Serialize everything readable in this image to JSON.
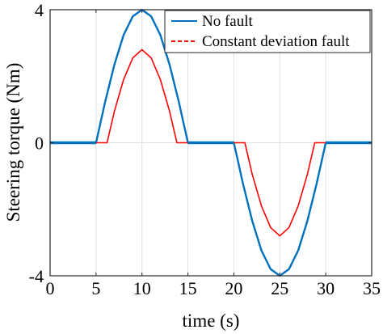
{
  "chart_data": {
    "type": "line",
    "xlabel": "time (s)",
    "ylabel": "Steering torque (Nm)",
    "xlim": [
      0,
      35
    ],
    "ylim": [
      -4,
      4
    ],
    "xticks": [
      "0",
      "5",
      "10",
      "15",
      "20",
      "25",
      "30",
      "35"
    ],
    "yticks": [
      "-4",
      "0",
      "4"
    ],
    "grid": true,
    "legend_position": "top-right",
    "series": [
      {
        "name": "No fault",
        "color": "#0072BD",
        "style": "solid",
        "x": [
          0,
          5,
          6,
          7,
          8,
          9,
          10,
          11,
          12,
          13,
          14,
          15,
          20,
          21,
          22,
          23,
          24,
          25,
          26,
          27,
          28,
          29,
          30,
          35
        ],
        "y": [
          0,
          0,
          1.24,
          2.35,
          3.24,
          3.8,
          4.0,
          3.8,
          3.24,
          2.35,
          1.24,
          0,
          0,
          -1.24,
          -2.35,
          -3.24,
          -3.8,
          -4.0,
          -3.8,
          -3.24,
          -2.35,
          -1.24,
          0,
          0
        ]
      },
      {
        "name": "Constant deviation fault",
        "color": "#FF0000",
        "style": "dashed",
        "x": [
          0,
          5,
          5.5,
          6,
          6.2,
          7,
          8,
          9,
          10,
          11,
          12,
          13,
          13.8,
          14,
          14.5,
          15,
          20,
          20.5,
          21,
          21.2,
          22,
          23,
          24,
          25,
          26,
          27,
          28,
          28.8,
          29,
          29.5,
          30,
          35
        ],
        "y": [
          0,
          0,
          0,
          0,
          0,
          0.95,
          1.9,
          2.55,
          2.8,
          2.55,
          1.9,
          0.95,
          0,
          0,
          0,
          0,
          0,
          0,
          0,
          0,
          -0.95,
          -1.9,
          -2.55,
          -2.8,
          -2.55,
          -1.9,
          -0.95,
          0,
          0,
          0,
          0,
          0
        ]
      }
    ]
  }
}
